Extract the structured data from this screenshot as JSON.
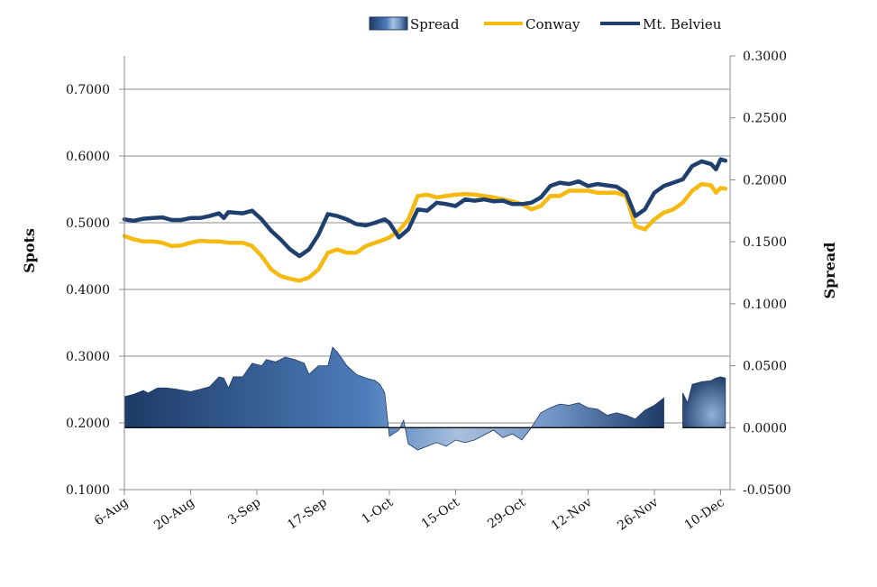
{
  "chart_data": {
    "type": "line",
    "title": "",
    "x_axis_ticks": [
      "6-Aug",
      "20-Aug",
      "3-Sep",
      "17-Sep",
      "1-Oct",
      "15-Oct",
      "29-Oct",
      "12-Nov",
      "26-Nov",
      "10-Dec"
    ],
    "y_left": {
      "label": "Spots",
      "ylim": [
        0.1,
        0.75
      ],
      "ticks": [
        "0.1000",
        "0.2000",
        "0.3000",
        "0.4000",
        "0.5000",
        "0.6000",
        "0.7000"
      ]
    },
    "y_right": {
      "label": "Spread",
      "ylim": [
        -0.05,
        0.3
      ],
      "ticks": [
        "-0.0500",
        "0.0000",
        "0.0500",
        "0.1000",
        "0.1500",
        "0.2000",
        "0.2500",
        "0.3000"
      ]
    },
    "grid": "horizontal",
    "legend_position": "top-right",
    "legend": [
      "Spread",
      "Conway",
      "Mt. Belvieu"
    ],
    "colors": {
      "spread": "#2f5f93",
      "spread_light": "#a9c1df",
      "conway": "#f5b90f",
      "belvieu": "#1f3f6e",
      "grid": "#8c8c8c"
    },
    "series": [
      {
        "name": "Mt. Belvieu",
        "axis": "left",
        "values": [
          [
            "6-Aug",
            0.505
          ],
          [
            "8-Aug",
            0.503
          ],
          [
            "10-Aug",
            0.506
          ],
          [
            "12-Aug",
            0.507
          ],
          [
            "14-Aug",
            0.508
          ],
          [
            "16-Aug",
            0.504
          ],
          [
            "18-Aug",
            0.504
          ],
          [
            "20-Aug",
            0.507
          ],
          [
            "22-Aug",
            0.507
          ],
          [
            "24-Aug",
            0.51
          ],
          [
            "26-Aug",
            0.514
          ],
          [
            "27-Aug",
            0.507
          ],
          [
            "28-Aug",
            0.516
          ],
          [
            "31-Aug",
            0.514
          ],
          [
            "2-Sep",
            0.518
          ],
          [
            "4-Sep",
            0.505
          ],
          [
            "6-Sep",
            0.488
          ],
          [
            "8-Sep",
            0.475
          ],
          [
            "10-Sep",
            0.46
          ],
          [
            "12-Sep",
            0.45
          ],
          [
            "14-Sep",
            0.46
          ],
          [
            "16-Sep",
            0.482
          ],
          [
            "18-Sep",
            0.513
          ],
          [
            "20-Sep",
            0.51
          ],
          [
            "22-Sep",
            0.505
          ],
          [
            "24-Sep",
            0.498
          ],
          [
            "26-Sep",
            0.496
          ],
          [
            "28-Sep",
            0.5
          ],
          [
            "30-Sep",
            0.505
          ],
          [
            "1-Oct",
            0.5
          ],
          [
            "3-Oct",
            0.478
          ],
          [
            "5-Oct",
            0.49
          ],
          [
            "7-Oct",
            0.52
          ],
          [
            "9-Oct",
            0.518
          ],
          [
            "11-Oct",
            0.53
          ],
          [
            "13-Oct",
            0.528
          ],
          [
            "15-Oct",
            0.525
          ],
          [
            "17-Oct",
            0.535
          ],
          [
            "19-Oct",
            0.533
          ],
          [
            "21-Oct",
            0.535
          ],
          [
            "23-Oct",
            0.532
          ],
          [
            "25-Oct",
            0.533
          ],
          [
            "27-Oct",
            0.528
          ],
          [
            "29-Oct",
            0.528
          ],
          [
            "31-Oct",
            0.53
          ],
          [
            "2-Nov",
            0.538
          ],
          [
            "4-Nov",
            0.555
          ],
          [
            "6-Nov",
            0.56
          ],
          [
            "8-Nov",
            0.558
          ],
          [
            "10-Nov",
            0.562
          ],
          [
            "12-Nov",
            0.555
          ],
          [
            "14-Nov",
            0.558
          ],
          [
            "16-Nov",
            0.556
          ],
          [
            "18-Nov",
            0.554
          ],
          [
            "20-Nov",
            0.545
          ],
          [
            "22-Nov",
            0.51
          ],
          [
            "24-Nov",
            0.52
          ],
          [
            "26-Nov",
            0.545
          ],
          [
            "28-Nov",
            0.555
          ],
          [
            "30-Nov",
            0.56
          ],
          [
            "2-Dec",
            0.565
          ],
          [
            "4-Dec",
            0.585
          ],
          [
            "6-Dec",
            0.592
          ],
          [
            "8-Dec",
            0.588
          ],
          [
            "9-Dec",
            0.58
          ],
          [
            "10-Dec",
            0.595
          ],
          [
            "11-Dec",
            0.593
          ]
        ]
      },
      {
        "name": "Conway",
        "axis": "left",
        "values": [
          [
            "6-Aug",
            0.48
          ],
          [
            "8-Aug",
            0.475
          ],
          [
            "10-Aug",
            0.472
          ],
          [
            "12-Aug",
            0.472
          ],
          [
            "14-Aug",
            0.47
          ],
          [
            "16-Aug",
            0.465
          ],
          [
            "18-Aug",
            0.466
          ],
          [
            "20-Aug",
            0.47
          ],
          [
            "22-Aug",
            0.473
          ],
          [
            "24-Aug",
            0.472
          ],
          [
            "26-Aug",
            0.472
          ],
          [
            "28-Aug",
            0.47
          ],
          [
            "31-Aug",
            0.47
          ],
          [
            "2-Sep",
            0.465
          ],
          [
            "4-Sep",
            0.45
          ],
          [
            "6-Sep",
            0.43
          ],
          [
            "8-Sep",
            0.42
          ],
          [
            "10-Sep",
            0.416
          ],
          [
            "12-Sep",
            0.413
          ],
          [
            "14-Sep",
            0.418
          ],
          [
            "16-Sep",
            0.43
          ],
          [
            "18-Sep",
            0.455
          ],
          [
            "20-Sep",
            0.46
          ],
          [
            "22-Sep",
            0.455
          ],
          [
            "24-Sep",
            0.455
          ],
          [
            "26-Sep",
            0.465
          ],
          [
            "28-Sep",
            0.47
          ],
          [
            "30-Sep",
            0.475
          ],
          [
            "1-Oct",
            0.478
          ],
          [
            "3-Oct",
            0.488
          ],
          [
            "5-Oct",
            0.505
          ],
          [
            "7-Oct",
            0.54
          ],
          [
            "9-Oct",
            0.542
          ],
          [
            "11-Oct",
            0.538
          ],
          [
            "13-Oct",
            0.54
          ],
          [
            "15-Oct",
            0.542
          ],
          [
            "17-Oct",
            0.543
          ],
          [
            "19-Oct",
            0.542
          ],
          [
            "21-Oct",
            0.54
          ],
          [
            "23-Oct",
            0.538
          ],
          [
            "25-Oct",
            0.535
          ],
          [
            "27-Oct",
            0.532
          ],
          [
            "29-Oct",
            0.528
          ],
          [
            "31-Oct",
            0.52
          ],
          [
            "2-Nov",
            0.525
          ],
          [
            "4-Nov",
            0.54
          ],
          [
            "6-Nov",
            0.54
          ],
          [
            "8-Nov",
            0.548
          ],
          [
            "10-Nov",
            0.548
          ],
          [
            "12-Nov",
            0.548
          ],
          [
            "14-Nov",
            0.545
          ],
          [
            "16-Nov",
            0.545
          ],
          [
            "18-Nov",
            0.545
          ],
          [
            "20-Nov",
            0.54
          ],
          [
            "22-Nov",
            0.495
          ],
          [
            "24-Nov",
            0.49
          ],
          [
            "26-Nov",
            0.505
          ],
          [
            "28-Nov",
            0.515
          ],
          [
            "30-Nov",
            0.52
          ],
          [
            "2-Dec",
            0.53
          ],
          [
            "4-Dec",
            0.548
          ],
          [
            "6-Dec",
            0.558
          ],
          [
            "8-Dec",
            0.556
          ],
          [
            "9-Dec",
            0.545
          ],
          [
            "10-Dec",
            0.552
          ],
          [
            "11-Dec",
            0.551
          ]
        ]
      },
      {
        "name": "Spread",
        "axis": "right",
        "segments": [
          [
            [
              "6-Aug",
              0.025
            ],
            [
              "8-Aug",
              0.027
            ],
            [
              "10-Aug",
              0.03
            ],
            [
              "11-Aug",
              0.028
            ],
            [
              "13-Aug",
              0.032
            ],
            [
              "15-Aug",
              0.032
            ],
            [
              "17-Aug",
              0.031
            ],
            [
              "20-Aug",
              0.029
            ],
            [
              "22-Aug",
              0.031
            ],
            [
              "24-Aug",
              0.033
            ],
            [
              "25-Aug",
              0.037
            ],
            [
              "26-Aug",
              0.041
            ],
            [
              "27-Aug",
              0.04
            ],
            [
              "28-Aug",
              0.032
            ],
            [
              "29-Aug",
              0.041
            ],
            [
              "31-Aug",
              0.041
            ],
            [
              "2-Sep",
              0.052
            ],
            [
              "4-Sep",
              0.05
            ],
            [
              "5-Sep",
              0.055
            ],
            [
              "7-Sep",
              0.053
            ],
            [
              "9-Sep",
              0.057
            ],
            [
              "11-Sep",
              0.055
            ],
            [
              "13-Sep",
              0.052
            ],
            [
              "14-Sep",
              0.043
            ],
            [
              "16-Sep",
              0.05
            ],
            [
              "18-Sep",
              0.05
            ],
            [
              "19-Sep",
              0.065
            ],
            [
              "20-Sep",
              0.061
            ],
            [
              "22-Sep",
              0.05
            ],
            [
              "24-Sep",
              0.043
            ],
            [
              "26-Sep",
              0.04
            ],
            [
              "28-Sep",
              0.038
            ],
            [
              "29-Sep",
              0.035
            ],
            [
              "30-Sep",
              0.028
            ],
            [
              "1-Oct",
              -0.007
            ],
            [
              "3-Oct",
              -0.002
            ],
            [
              "4-Oct",
              0.006
            ],
            [
              "5-Oct",
              -0.013
            ],
            [
              "7-Oct",
              -0.018
            ],
            [
              "9-Oct",
              -0.015
            ],
            [
              "11-Oct",
              -0.012
            ],
            [
              "13-Oct",
              -0.015
            ],
            [
              "15-Oct",
              -0.01
            ],
            [
              "17-Oct",
              -0.012
            ],
            [
              "19-Oct",
              -0.01
            ],
            [
              "21-Oct",
              -0.006
            ],
            [
              "23-Oct",
              -0.002
            ],
            [
              "25-Oct",
              -0.008
            ],
            [
              "27-Oct",
              -0.005
            ],
            [
              "29-Oct",
              -0.01
            ],
            [
              "31-Oct",
              0.0
            ],
            [
              "2-Nov",
              0.012
            ],
            [
              "4-Nov",
              0.016
            ],
            [
              "6-Nov",
              0.019
            ],
            [
              "8-Nov",
              0.018
            ],
            [
              "10-Nov",
              0.02
            ],
            [
              "12-Nov",
              0.016
            ],
            [
              "14-Nov",
              0.015
            ],
            [
              "16-Nov",
              0.01
            ],
            [
              "18-Nov",
              0.012
            ],
            [
              "20-Nov",
              0.01
            ],
            [
              "22-Nov",
              0.007
            ],
            [
              "24-Nov",
              0.014
            ],
            [
              "26-Nov",
              0.018
            ],
            [
              "27-Nov",
              0.021
            ],
            [
              "28-Nov",
              0.024
            ]
          ],
          [
            [
              "2-Dec",
              0.028
            ],
            [
              "3-Dec",
              0.02
            ],
            [
              "4-Dec",
              0.035
            ],
            [
              "6-Dec",
              0.037
            ],
            [
              "8-Dec",
              0.038
            ],
            [
              "9-Dec",
              0.04
            ],
            [
              "10-Dec",
              0.041
            ],
            [
              "11-Dec",
              0.04
            ]
          ]
        ]
      }
    ]
  }
}
